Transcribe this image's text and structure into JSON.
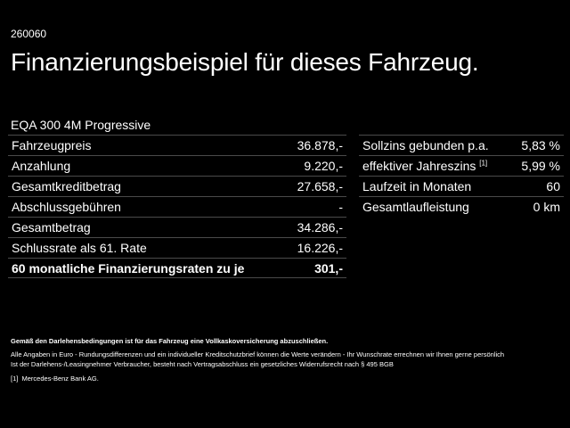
{
  "ref_code": "260060",
  "title": "Finanzierungsbeispiel für dieses Fahrzeug.",
  "model": "EQA 300 4M Progressive",
  "left_table": [
    {
      "label": "Fahrzeugpreis",
      "value": "36.878,-"
    },
    {
      "label": "Anzahlung",
      "value": "9.220,-"
    },
    {
      "label": "Gesamtkreditbetrag",
      "value": "27.658,-"
    },
    {
      "label": "Abschlussgebühren",
      "value": "-"
    },
    {
      "label": "Gesamtbetrag",
      "value": "34.286,-"
    },
    {
      "label": "Schlussrate als 61. Rate",
      "value": "16.226,-"
    },
    {
      "label": "60 monatliche Finanzierungsraten zu je",
      "value": "301,-"
    }
  ],
  "right_table": [
    {
      "label": "Sollzins gebunden p.a.",
      "footnote": "",
      "value": "5,83 %"
    },
    {
      "label": "effektiver Jahreszins",
      "footnote": "[1]",
      "value": "5,99 %"
    },
    {
      "label": "Laufzeit in Monaten",
      "footnote": "",
      "value": "60"
    },
    {
      "label": "Gesamtlaufleistung",
      "footnote": "",
      "value": "0 km"
    }
  ],
  "notes": {
    "insurance": "Gemäß den Darlehensbedingungen ist für das Fahrzeug eine Vollkaskoversicherung abzuschließen.",
    "disclaimer_line1": "Alle Angaben in Euro - Rundungsdifferenzen und ein individueller Kreditschutzbrief können die Werte verändern - Ihr Wunschrate errechnen wir Ihnen gerne persönlich",
    "disclaimer_line2": "Ist der Darlehens-/Leasingnehmer Verbraucher, besteht nach Vertragsabschluss ein gesetzliches Widerrufsrecht nach § 495 BGB",
    "footnote_marker": "[1]",
    "footnote_text": "Mercedes-Benz Bank AG."
  }
}
